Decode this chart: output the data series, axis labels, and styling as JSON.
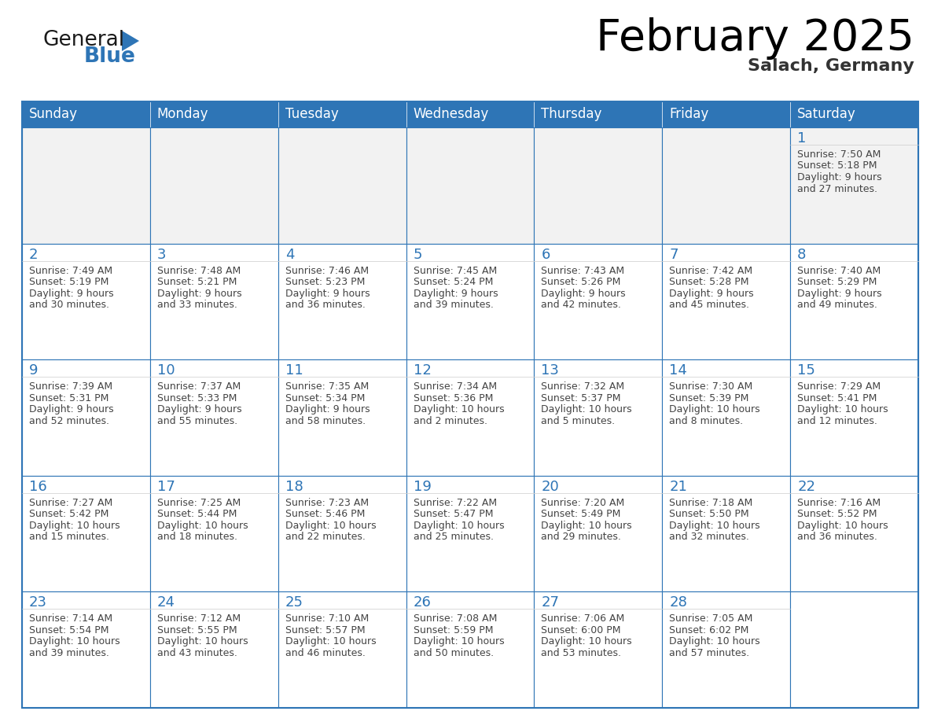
{
  "title": "February 2025",
  "subtitle": "Salach, Germany",
  "days_of_week": [
    "Sunday",
    "Monday",
    "Tuesday",
    "Wednesday",
    "Thursday",
    "Friday",
    "Saturday"
  ],
  "header_bg": "#2E75B6",
  "header_text": "#FFFFFF",
  "cell_bg_odd": "#F0F4F8",
  "cell_bg_white": "#FFFFFF",
  "cell_bg_gray": "#F2F2F2",
  "border_color": "#2E75B6",
  "day_num_color": "#2E75B6",
  "text_color": "#444444",
  "calendar_data": [
    [
      {
        "day": null,
        "sunrise": null,
        "sunset": null,
        "daylight": ""
      },
      {
        "day": null,
        "sunrise": null,
        "sunset": null,
        "daylight": ""
      },
      {
        "day": null,
        "sunrise": null,
        "sunset": null,
        "daylight": ""
      },
      {
        "day": null,
        "sunrise": null,
        "sunset": null,
        "daylight": ""
      },
      {
        "day": null,
        "sunrise": null,
        "sunset": null,
        "daylight": ""
      },
      {
        "day": null,
        "sunrise": null,
        "sunset": null,
        "daylight": ""
      },
      {
        "day": 1,
        "sunrise": "7:50 AM",
        "sunset": "5:18 PM",
        "daylight": "9 hours\nand 27 minutes."
      }
    ],
    [
      {
        "day": 2,
        "sunrise": "7:49 AM",
        "sunset": "5:19 PM",
        "daylight": "9 hours\nand 30 minutes."
      },
      {
        "day": 3,
        "sunrise": "7:48 AM",
        "sunset": "5:21 PM",
        "daylight": "9 hours\nand 33 minutes."
      },
      {
        "day": 4,
        "sunrise": "7:46 AM",
        "sunset": "5:23 PM",
        "daylight": "9 hours\nand 36 minutes."
      },
      {
        "day": 5,
        "sunrise": "7:45 AM",
        "sunset": "5:24 PM",
        "daylight": "9 hours\nand 39 minutes."
      },
      {
        "day": 6,
        "sunrise": "7:43 AM",
        "sunset": "5:26 PM",
        "daylight": "9 hours\nand 42 minutes."
      },
      {
        "day": 7,
        "sunrise": "7:42 AM",
        "sunset": "5:28 PM",
        "daylight": "9 hours\nand 45 minutes."
      },
      {
        "day": 8,
        "sunrise": "7:40 AM",
        "sunset": "5:29 PM",
        "daylight": "9 hours\nand 49 minutes."
      }
    ],
    [
      {
        "day": 9,
        "sunrise": "7:39 AM",
        "sunset": "5:31 PM",
        "daylight": "9 hours\nand 52 minutes."
      },
      {
        "day": 10,
        "sunrise": "7:37 AM",
        "sunset": "5:33 PM",
        "daylight": "9 hours\nand 55 minutes."
      },
      {
        "day": 11,
        "sunrise": "7:35 AM",
        "sunset": "5:34 PM",
        "daylight": "9 hours\nand 58 minutes."
      },
      {
        "day": 12,
        "sunrise": "7:34 AM",
        "sunset": "5:36 PM",
        "daylight": "10 hours\nand 2 minutes."
      },
      {
        "day": 13,
        "sunrise": "7:32 AM",
        "sunset": "5:37 PM",
        "daylight": "10 hours\nand 5 minutes."
      },
      {
        "day": 14,
        "sunrise": "7:30 AM",
        "sunset": "5:39 PM",
        "daylight": "10 hours\nand 8 minutes."
      },
      {
        "day": 15,
        "sunrise": "7:29 AM",
        "sunset": "5:41 PM",
        "daylight": "10 hours\nand 12 minutes."
      }
    ],
    [
      {
        "day": 16,
        "sunrise": "7:27 AM",
        "sunset": "5:42 PM",
        "daylight": "10 hours\nand 15 minutes."
      },
      {
        "day": 17,
        "sunrise": "7:25 AM",
        "sunset": "5:44 PM",
        "daylight": "10 hours\nand 18 minutes."
      },
      {
        "day": 18,
        "sunrise": "7:23 AM",
        "sunset": "5:46 PM",
        "daylight": "10 hours\nand 22 minutes."
      },
      {
        "day": 19,
        "sunrise": "7:22 AM",
        "sunset": "5:47 PM",
        "daylight": "10 hours\nand 25 minutes."
      },
      {
        "day": 20,
        "sunrise": "7:20 AM",
        "sunset": "5:49 PM",
        "daylight": "10 hours\nand 29 minutes."
      },
      {
        "day": 21,
        "sunrise": "7:18 AM",
        "sunset": "5:50 PM",
        "daylight": "10 hours\nand 32 minutes."
      },
      {
        "day": 22,
        "sunrise": "7:16 AM",
        "sunset": "5:52 PM",
        "daylight": "10 hours\nand 36 minutes."
      }
    ],
    [
      {
        "day": 23,
        "sunrise": "7:14 AM",
        "sunset": "5:54 PM",
        "daylight": "10 hours\nand 39 minutes."
      },
      {
        "day": 24,
        "sunrise": "7:12 AM",
        "sunset": "5:55 PM",
        "daylight": "10 hours\nand 43 minutes."
      },
      {
        "day": 25,
        "sunrise": "7:10 AM",
        "sunset": "5:57 PM",
        "daylight": "10 hours\nand 46 minutes."
      },
      {
        "day": 26,
        "sunrise": "7:08 AM",
        "sunset": "5:59 PM",
        "daylight": "10 hours\nand 50 minutes."
      },
      {
        "day": 27,
        "sunrise": "7:06 AM",
        "sunset": "6:00 PM",
        "daylight": "10 hours\nand 53 minutes."
      },
      {
        "day": 28,
        "sunrise": "7:05 AM",
        "sunset": "6:02 PM",
        "daylight": "10 hours\nand 57 minutes."
      },
      {
        "day": null,
        "sunrise": null,
        "sunset": null,
        "daylight": ""
      }
    ]
  ],
  "logo_general_color": "#1a1a1a",
  "logo_blue_color": "#2E75B6",
  "logo_triangle_color": "#2E75B6",
  "title_fontsize": 40,
  "subtitle_fontsize": 16,
  "header_fontsize": 12,
  "day_num_fontsize": 13,
  "cell_text_fontsize": 9,
  "logo_fontsize": 19
}
